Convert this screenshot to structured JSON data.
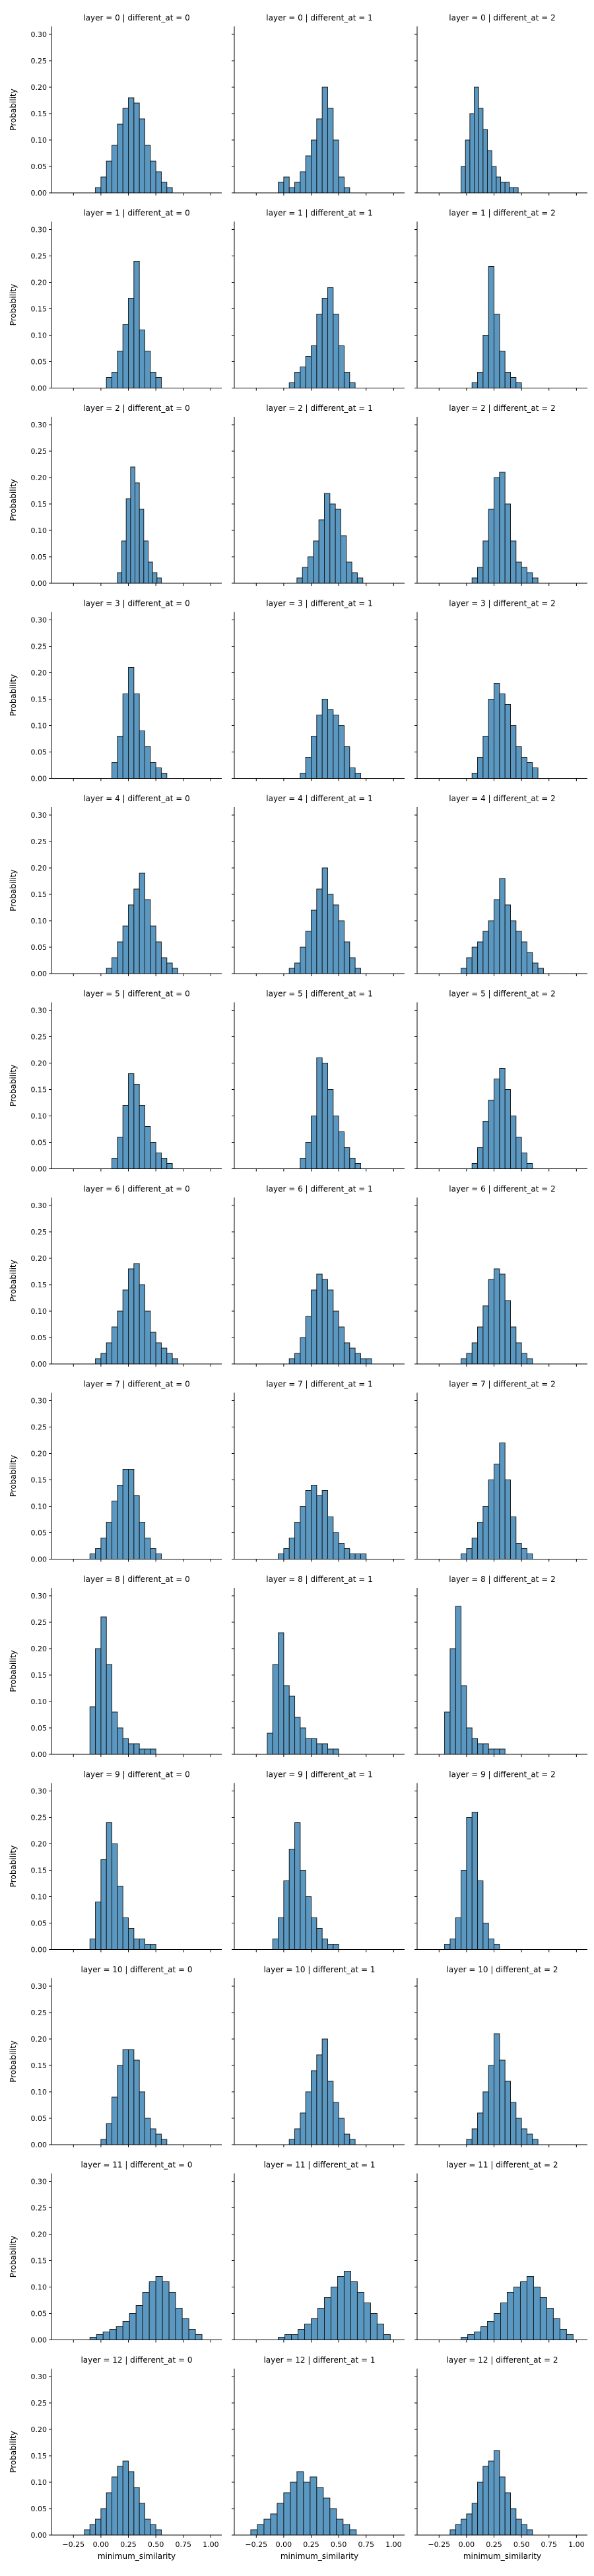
{
  "figure": {
    "xlabel": "minimum_similarity",
    "ylabel": "Probability",
    "y_ticks": [
      "0.00",
      "0.05",
      "0.10",
      "0.15",
      "0.20",
      "0.25",
      "0.30"
    ],
    "x_ticks": [
      "−0.25",
      "0.00",
      "0.25",
      "0.50",
      "0.75",
      "1.00"
    ]
  },
  "chart_data": {
    "type": "bar",
    "subtype": "histogram facet grid",
    "rows": 13,
    "cols": 3,
    "shared_axes": true,
    "xlim": [
      -0.45,
      1.1
    ],
    "ylim": [
      0,
      0.315
    ],
    "x_tick_values": [
      -0.25,
      0,
      0.25,
      0.5,
      0.75,
      1.0
    ],
    "y_tick_values": [
      0,
      0.05,
      0.1,
      0.15,
      0.2,
      0.25,
      0.3
    ],
    "bar_color": "#4c8fbd",
    "edge_color": "#1a1a1a",
    "facets": [
      {
        "title": "layer = 0 | different_at = 0",
        "bin_start": -0.05,
        "bin_width": 0.05,
        "values": [
          0.01,
          0.03,
          0.06,
          0.09,
          0.13,
          0.16,
          0.18,
          0.17,
          0.14,
          0.09,
          0.06,
          0.04,
          0.02,
          0.01
        ]
      },
      {
        "title": "layer = 0 | different_at = 1",
        "bin_start": -0.05,
        "bin_width": 0.05,
        "values": [
          0.02,
          0.03,
          0.01,
          0.02,
          0.04,
          0.07,
          0.1,
          0.14,
          0.2,
          0.16,
          0.1,
          0.03,
          0.01
        ]
      },
      {
        "title": "layer = 0 | different_at = 2",
        "bin_start": -0.05,
        "bin_width": 0.04,
        "values": [
          0.05,
          0.1,
          0.15,
          0.2,
          0.16,
          0.12,
          0.08,
          0.05,
          0.03,
          0.02,
          0.02,
          0.01,
          0.01
        ]
      },
      {
        "title": "layer = 1 | different_at = 0",
        "bin_start": 0.05,
        "bin_width": 0.05,
        "values": [
          0.02,
          0.03,
          0.07,
          0.12,
          0.17,
          0.24,
          0.11,
          0.07,
          0.03,
          0.02
        ]
      },
      {
        "title": "layer = 1 | different_at = 1",
        "bin_start": 0.05,
        "bin_width": 0.05,
        "values": [
          0.01,
          0.03,
          0.04,
          0.06,
          0.08,
          0.14,
          0.17,
          0.19,
          0.14,
          0.08,
          0.03,
          0.01
        ]
      },
      {
        "title": "layer = 1 | different_at = 2",
        "bin_start": 0.05,
        "bin_width": 0.05,
        "values": [
          0.01,
          0.03,
          0.1,
          0.23,
          0.14,
          0.07,
          0.03,
          0.02,
          0.01
        ]
      },
      {
        "title": "layer = 2 | different_at = 0",
        "bin_start": 0.15,
        "bin_width": 0.04,
        "values": [
          0.02,
          0.08,
          0.16,
          0.22,
          0.19,
          0.14,
          0.08,
          0.04,
          0.02,
          0.01
        ]
      },
      {
        "title": "layer = 2 | different_at = 1",
        "bin_start": 0.12,
        "bin_width": 0.05,
        "values": [
          0.01,
          0.03,
          0.05,
          0.08,
          0.12,
          0.17,
          0.15,
          0.14,
          0.09,
          0.04,
          0.02,
          0.01
        ]
      },
      {
        "title": "layer = 2 | different_at = 2",
        "bin_start": 0.05,
        "bin_width": 0.05,
        "values": [
          0.01,
          0.03,
          0.08,
          0.14,
          0.2,
          0.21,
          0.15,
          0.08,
          0.04,
          0.03,
          0.02,
          0.01
        ]
      },
      {
        "title": "layer = 3 | different_at = 0",
        "bin_start": 0.1,
        "bin_width": 0.05,
        "values": [
          0.03,
          0.08,
          0.16,
          0.21,
          0.16,
          0.09,
          0.06,
          0.03,
          0.02,
          0.01
        ]
      },
      {
        "title": "layer = 3 | different_at = 1",
        "bin_start": 0.15,
        "bin_width": 0.05,
        "values": [
          0.01,
          0.04,
          0.08,
          0.12,
          0.15,
          0.13,
          0.12,
          0.1,
          0.06,
          0.02,
          0.01
        ]
      },
      {
        "title": "layer = 3 | different_at = 2",
        "bin_start": 0.05,
        "bin_width": 0.05,
        "values": [
          0.01,
          0.04,
          0.08,
          0.15,
          0.18,
          0.16,
          0.14,
          0.1,
          0.06,
          0.04,
          0.03,
          0.02
        ]
      },
      {
        "title": "layer = 4 | different_at = 0",
        "bin_start": 0.05,
        "bin_width": 0.05,
        "values": [
          0.01,
          0.03,
          0.06,
          0.09,
          0.13,
          0.16,
          0.19,
          0.14,
          0.09,
          0.06,
          0.03,
          0.02,
          0.01
        ]
      },
      {
        "title": "layer = 4 | different_at = 1",
        "bin_start": 0.05,
        "bin_width": 0.05,
        "values": [
          0.01,
          0.02,
          0.05,
          0.08,
          0.12,
          0.16,
          0.2,
          0.15,
          0.13,
          0.1,
          0.06,
          0.03,
          0.01
        ]
      },
      {
        "title": "layer = 4 | different_at = 2",
        "bin_start": -0.05,
        "bin_width": 0.05,
        "values": [
          0.01,
          0.03,
          0.05,
          0.06,
          0.08,
          0.1,
          0.14,
          0.18,
          0.13,
          0.1,
          0.08,
          0.06,
          0.04,
          0.02,
          0.01
        ]
      },
      {
        "title": "layer = 5 | different_at = 0",
        "bin_start": 0.1,
        "bin_width": 0.05,
        "values": [
          0.02,
          0.06,
          0.12,
          0.18,
          0.16,
          0.12,
          0.08,
          0.05,
          0.03,
          0.02,
          0.01
        ]
      },
      {
        "title": "layer = 5 | different_at = 1",
        "bin_start": 0.15,
        "bin_width": 0.05,
        "values": [
          0.02,
          0.05,
          0.1,
          0.21,
          0.2,
          0.15,
          0.1,
          0.07,
          0.04,
          0.02,
          0.01
        ]
      },
      {
        "title": "layer = 5 | different_at = 2",
        "bin_start": 0.05,
        "bin_width": 0.05,
        "values": [
          0.01,
          0.04,
          0.09,
          0.13,
          0.17,
          0.19,
          0.15,
          0.1,
          0.06,
          0.03,
          0.01
        ]
      },
      {
        "title": "layer = 6 | different_at = 0",
        "bin_start": -0.05,
        "bin_width": 0.05,
        "values": [
          0.01,
          0.02,
          0.04,
          0.07,
          0.1,
          0.14,
          0.18,
          0.19,
          0.15,
          0.1,
          0.06,
          0.04,
          0.03,
          0.02,
          0.01
        ]
      },
      {
        "title": "layer = 6 | different_at = 1",
        "bin_start": 0.05,
        "bin_width": 0.05,
        "values": [
          0.01,
          0.02,
          0.05,
          0.09,
          0.14,
          0.17,
          0.16,
          0.14,
          0.1,
          0.07,
          0.04,
          0.03,
          0.02,
          0.01,
          0.01
        ]
      },
      {
        "title": "layer = 6 | different_at = 2",
        "bin_start": -0.05,
        "bin_width": 0.05,
        "values": [
          0.01,
          0.02,
          0.04,
          0.07,
          0.11,
          0.16,
          0.18,
          0.17,
          0.12,
          0.07,
          0.04,
          0.02,
          0.01
        ]
      },
      {
        "title": "layer = 7 | different_at = 0",
        "bin_start": -0.1,
        "bin_width": 0.05,
        "values": [
          0.01,
          0.02,
          0.04,
          0.07,
          0.11,
          0.14,
          0.17,
          0.17,
          0.12,
          0.07,
          0.04,
          0.02,
          0.01
        ]
      },
      {
        "title": "layer = 7 | different_at = 1",
        "bin_start": -0.05,
        "bin_width": 0.05,
        "values": [
          0.01,
          0.02,
          0.04,
          0.07,
          0.1,
          0.13,
          0.14,
          0.12,
          0.13,
          0.08,
          0.05,
          0.03,
          0.02,
          0.01,
          0.01,
          0.01
        ]
      },
      {
        "title": "layer = 7 | different_at = 2",
        "bin_start": -0.05,
        "bin_width": 0.05,
        "values": [
          0.01,
          0.02,
          0.04,
          0.07,
          0.1,
          0.15,
          0.18,
          0.22,
          0.15,
          0.08,
          0.03,
          0.02,
          0.01
        ]
      },
      {
        "title": "layer = 8 | different_at = 0",
        "bin_start": -0.1,
        "bin_width": 0.05,
        "values": [
          0.09,
          0.2,
          0.26,
          0.17,
          0.08,
          0.05,
          0.03,
          0.02,
          0.02,
          0.01,
          0.01,
          0.01
        ]
      },
      {
        "title": "layer = 8 | different_at = 1",
        "bin_start": -0.15,
        "bin_width": 0.05,
        "values": [
          0.04,
          0.17,
          0.23,
          0.13,
          0.11,
          0.07,
          0.05,
          0.03,
          0.03,
          0.02,
          0.02,
          0.01,
          0.01
        ]
      },
      {
        "title": "layer = 8 | different_at = 2",
        "bin_start": -0.2,
        "bin_width": 0.05,
        "values": [
          0.08,
          0.2,
          0.28,
          0.13,
          0.05,
          0.03,
          0.02,
          0.02,
          0.01,
          0.01,
          0.01
        ]
      },
      {
        "title": "layer = 9 | different_at = 0",
        "bin_start": -0.1,
        "bin_width": 0.05,
        "values": [
          0.02,
          0.09,
          0.17,
          0.24,
          0.2,
          0.12,
          0.06,
          0.04,
          0.02,
          0.02,
          0.01,
          0.01
        ]
      },
      {
        "title": "layer = 9 | different_at = 1",
        "bin_start": -0.1,
        "bin_width": 0.05,
        "values": [
          0.02,
          0.06,
          0.13,
          0.19,
          0.24,
          0.15,
          0.1,
          0.06,
          0.04,
          0.02,
          0.01,
          0.01
        ]
      },
      {
        "title": "layer = 9 | different_at = 2",
        "bin_start": -0.2,
        "bin_width": 0.05,
        "values": [
          0.01,
          0.02,
          0.06,
          0.15,
          0.25,
          0.26,
          0.13,
          0.05,
          0.02,
          0.01
        ]
      },
      {
        "title": "layer = 10 | different_at = 0",
        "bin_start": 0.0,
        "bin_width": 0.05,
        "values": [
          0.01,
          0.04,
          0.09,
          0.15,
          0.18,
          0.18,
          0.16,
          0.1,
          0.05,
          0.03,
          0.02,
          0.01
        ]
      },
      {
        "title": "layer = 10 | different_at = 1",
        "bin_start": 0.05,
        "bin_width": 0.05,
        "values": [
          0.01,
          0.03,
          0.06,
          0.1,
          0.14,
          0.17,
          0.2,
          0.12,
          0.08,
          0.05,
          0.02,
          0.01
        ]
      },
      {
        "title": "layer = 10 | different_at = 2",
        "bin_start": 0.0,
        "bin_width": 0.05,
        "values": [
          0.01,
          0.03,
          0.06,
          0.1,
          0.15,
          0.21,
          0.16,
          0.12,
          0.08,
          0.05,
          0.03,
          0.02,
          0.01
        ]
      },
      {
        "title": "layer = 11 | different_at = 0",
        "bin_start": -0.1,
        "bin_width": 0.06,
        "values": [
          0.005,
          0.01,
          0.015,
          0.02,
          0.025,
          0.035,
          0.05,
          0.065,
          0.09,
          0.11,
          0.12,
          0.11,
          0.09,
          0.06,
          0.04,
          0.02,
          0.01
        ]
      },
      {
        "title": "layer = 11 | different_at = 1",
        "bin_start": -0.05,
        "bin_width": 0.06,
        "values": [
          0.005,
          0.01,
          0.01,
          0.02,
          0.03,
          0.04,
          0.06,
          0.08,
          0.1,
          0.12,
          0.13,
          0.11,
          0.09,
          0.07,
          0.05,
          0.03,
          0.01
        ]
      },
      {
        "title": "layer = 11 | different_at = 2",
        "bin_start": -0.05,
        "bin_width": 0.06,
        "values": [
          0.005,
          0.01,
          0.015,
          0.025,
          0.035,
          0.05,
          0.07,
          0.09,
          0.1,
          0.11,
          0.12,
          0.1,
          0.08,
          0.06,
          0.04,
          0.02,
          0.01
        ]
      },
      {
        "title": "layer = 12 | different_at = 0",
        "bin_start": -0.15,
        "bin_width": 0.05,
        "values": [
          0.01,
          0.02,
          0.03,
          0.05,
          0.08,
          0.11,
          0.13,
          0.14,
          0.12,
          0.09,
          0.06,
          0.03,
          0.02,
          0.01
        ]
      },
      {
        "title": "layer = 12 | different_at = 1",
        "bin_start": -0.3,
        "bin_width": 0.06,
        "values": [
          0.01,
          0.02,
          0.03,
          0.04,
          0.06,
          0.08,
          0.1,
          0.12,
          0.1,
          0.11,
          0.09,
          0.07,
          0.05,
          0.03,
          0.02,
          0.01
        ]
      },
      {
        "title": "layer = 12 | different_at = 2",
        "bin_start": -0.15,
        "bin_width": 0.05,
        "values": [
          0.01,
          0.02,
          0.03,
          0.04,
          0.06,
          0.1,
          0.13,
          0.14,
          0.16,
          0.11,
          0.08,
          0.05,
          0.03,
          0.02,
          0.01
        ]
      }
    ]
  }
}
